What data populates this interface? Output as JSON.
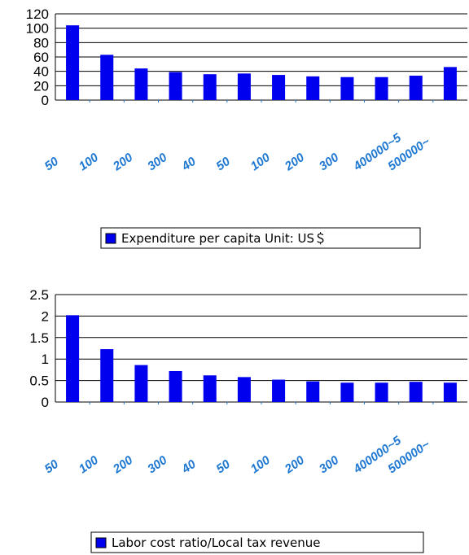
{
  "colors": {
    "bar": "#0000ee",
    "tick_x": "#1f78d1",
    "axis": "#000000"
  },
  "chart_data": [
    {
      "type": "bar",
      "categories": [
        "50",
        "100",
        "200",
        "300",
        "40",
        "50",
        "100",
        "200",
        "300",
        "400000~5",
        "500000~",
        ""
      ],
      "series": [
        {
          "name": "Expenditure per capita Unit: US＄",
          "values": [
            104,
            63,
            44,
            39,
            36,
            37,
            35,
            33,
            32,
            32,
            34,
            46
          ]
        }
      ],
      "yticks": [
        "0",
        "20",
        "40",
        "60",
        "80",
        "100",
        "120"
      ],
      "ylim": [
        0,
        120
      ],
      "grid": true,
      "legend": "bottom"
    },
    {
      "type": "bar",
      "categories": [
        "50",
        "100",
        "200",
        "300",
        "40",
        "50",
        "100",
        "200",
        "300",
        "400000~5",
        "500000~",
        ""
      ],
      "series": [
        {
          "name": "Labor cost ratio/Local tax revenue",
          "values": [
            2.02,
            1.23,
            0.86,
            0.72,
            0.62,
            0.58,
            0.52,
            0.48,
            0.45,
            0.45,
            0.47,
            0.45
          ]
        }
      ],
      "yticks": [
        "0",
        "0.5",
        "1",
        "1.5",
        "2",
        "2.5"
      ],
      "ylim": [
        0,
        2.5
      ],
      "grid": true,
      "legend": "bottom"
    }
  ]
}
